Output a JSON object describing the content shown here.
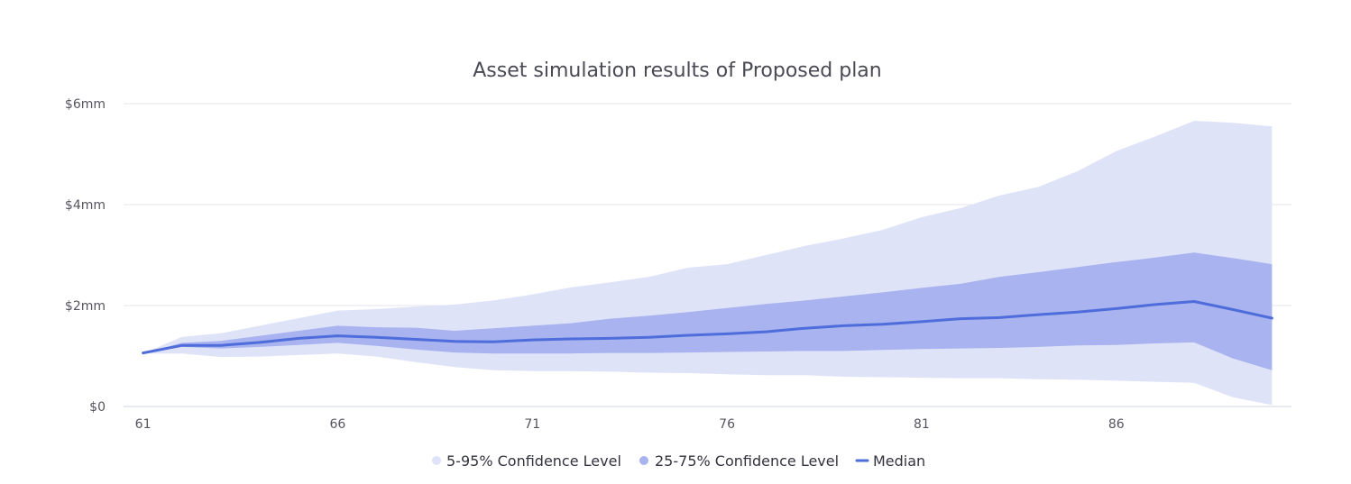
{
  "chart_data": {
    "type": "area",
    "title": "Asset simulation results of Proposed plan",
    "xlabel": "",
    "ylabel": "",
    "x_tick_labels": [
      "61",
      "66",
      "71",
      "76",
      "81",
      "86"
    ],
    "y_tick_labels": [
      "$0",
      "$2mm",
      "$4mm",
      "$6mm"
    ],
    "y_ticks": [
      0,
      2,
      4,
      6
    ],
    "x_ticks": [
      61,
      66,
      71,
      76,
      81,
      86
    ],
    "ylim": [
      0,
      6
    ],
    "xlim": [
      60.5,
      90.5
    ],
    "y_unit": "$mm",
    "grid": "horizontal",
    "legend_position": "bottom",
    "x": [
      61,
      62,
      63,
      64,
      65,
      66,
      67,
      68,
      69,
      70,
      71,
      72,
      73,
      74,
      75,
      76,
      77,
      78,
      79,
      80,
      81,
      82,
      83,
      84,
      85,
      86,
      87,
      88,
      89,
      90
    ],
    "series": [
      {
        "name": "5-95% Confidence Level",
        "kind": "band",
        "color": "#dfe3f7",
        "lower": [
          1.05,
          1.05,
          0.98,
          0.99,
          1.02,
          1.05,
          0.99,
          0.88,
          0.78,
          0.72,
          0.7,
          0.7,
          0.69,
          0.67,
          0.66,
          0.64,
          0.62,
          0.62,
          0.59,
          0.58,
          0.57,
          0.56,
          0.56,
          0.54,
          0.53,
          0.51,
          0.49,
          0.47,
          0.18,
          0.03
        ],
        "upper": [
          1.05,
          1.38,
          1.45,
          1.6,
          1.75,
          1.9,
          1.93,
          1.98,
          2.02,
          2.1,
          2.22,
          2.36,
          2.46,
          2.57,
          2.75,
          2.82,
          3.0,
          3.18,
          3.33,
          3.5,
          3.75,
          3.93,
          4.18,
          4.35,
          4.66,
          5.06,
          5.35,
          5.66,
          5.62,
          5.55
        ]
      },
      {
        "name": "25-75% Confidence Level",
        "kind": "band",
        "color": "#a8b3ef",
        "lower": [
          1.05,
          1.18,
          1.15,
          1.18,
          1.22,
          1.26,
          1.2,
          1.13,
          1.07,
          1.05,
          1.05,
          1.05,
          1.06,
          1.06,
          1.07,
          1.08,
          1.09,
          1.1,
          1.1,
          1.12,
          1.14,
          1.15,
          1.16,
          1.18,
          1.21,
          1.22,
          1.25,
          1.27,
          0.95,
          0.72
        ],
        "upper": [
          1.05,
          1.26,
          1.3,
          1.4,
          1.5,
          1.6,
          1.57,
          1.56,
          1.5,
          1.55,
          1.6,
          1.65,
          1.74,
          1.8,
          1.87,
          1.95,
          2.03,
          2.1,
          2.18,
          2.26,
          2.35,
          2.43,
          2.57,
          2.66,
          2.76,
          2.86,
          2.95,
          3.05,
          2.94,
          2.82
        ]
      },
      {
        "name": "Median",
        "kind": "line",
        "color": "#4e6ddb",
        "values": [
          1.06,
          1.21,
          1.21,
          1.27,
          1.35,
          1.4,
          1.37,
          1.33,
          1.29,
          1.28,
          1.32,
          1.34,
          1.35,
          1.37,
          1.41,
          1.44,
          1.48,
          1.55,
          1.6,
          1.63,
          1.68,
          1.74,
          1.76,
          1.82,
          1.87,
          1.94,
          2.02,
          2.08,
          1.92,
          1.75
        ]
      }
    ]
  }
}
